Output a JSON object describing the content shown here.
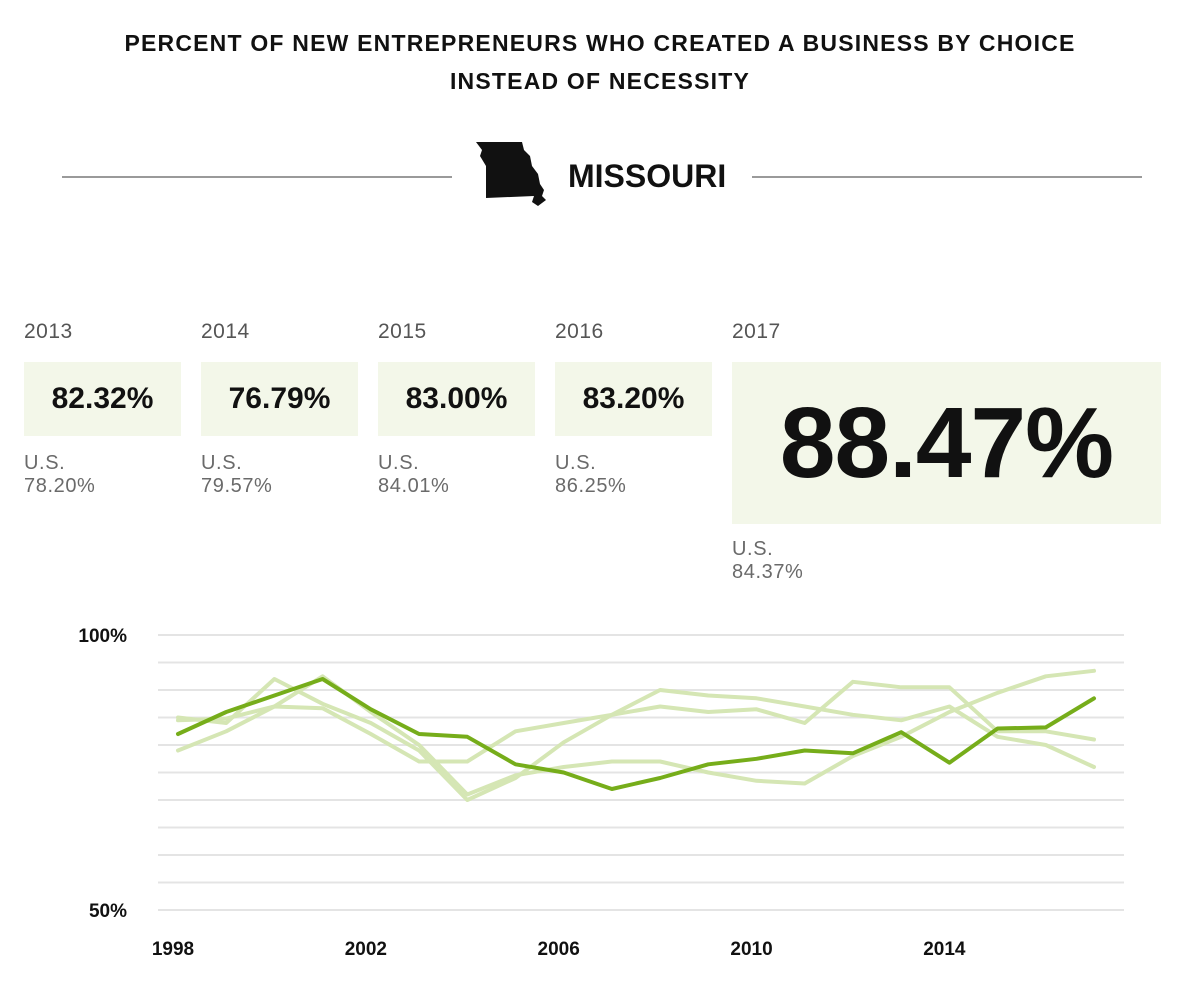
{
  "header": {
    "title_line1": "PERCENT OF NEW ENTREPRENEURS WHO CREATED A BUSINESS BY CHOICE",
    "title_line2": "INSTEAD OF NECESSITY",
    "state": "MISSOURI",
    "state_icon": "missouri-map-icon"
  },
  "cards": [
    {
      "year": "2013",
      "value": "82.32%",
      "us": "U.S. 78.20%"
    },
    {
      "year": "2014",
      "value": "76.79%",
      "us": "U.S. 79.57%"
    },
    {
      "year": "2015",
      "value": "83.00%",
      "us": "U.S. 84.01%"
    },
    {
      "year": "2016",
      "value": "83.20%",
      "us": "U.S. 86.25%"
    },
    {
      "year": "2017",
      "value": "88.47%",
      "us": "U.S. 84.37%"
    }
  ],
  "colors": {
    "highlight": "#76ad1a",
    "muted": "#d5e6b4",
    "grid": "#e4e4e4",
    "box_bg": "#f3f7e9"
  },
  "chart_data": {
    "type": "line",
    "ylim": [
      50,
      100
    ],
    "y_tick_labels": [
      {
        "value": 100,
        "label": "100%"
      },
      {
        "value": 50,
        "label": "50%"
      }
    ],
    "gridlines": [
      100,
      95,
      90,
      85,
      80,
      75,
      70,
      65,
      60,
      55,
      50
    ],
    "x_ticks": [
      1998,
      2002,
      2006,
      2010,
      2014
    ],
    "x": [
      1998,
      1999,
      2000,
      2001,
      2002,
      2003,
      2004,
      2005,
      2006,
      2007,
      2008,
      2009,
      2010,
      2011,
      2012,
      2013,
      2014,
      2015,
      2016,
      2017
    ],
    "series": [
      {
        "highlight": false,
        "values": [
          84.5,
          84.8,
          87.0,
          86.7,
          82.0,
          77.0,
          77.0,
          82.5,
          84.0,
          85.5,
          90.0,
          89.0,
          88.5,
          87.0,
          85.5,
          84.5,
          87.0,
          81.5,
          80.0,
          76.0
        ]
      },
      {
        "highlight": false,
        "values": [
          79.0,
          82.5,
          87.0,
          92.5,
          86.0,
          80.0,
          71.0,
          74.5,
          76.0,
          77.0,
          77.0,
          75.0,
          73.5,
          73.0,
          78.0,
          81.5,
          86.0,
          89.5,
          92.5,
          93.5
        ]
      },
      {
        "highlight": false,
        "values": [
          85.0,
          84.0,
          92.0,
          87.5,
          84.0,
          79.0,
          70.0,
          74.0,
          80.5,
          85.5,
          87.0,
          86.0,
          86.5,
          84.0,
          91.5,
          90.5,
          90.5,
          82.5,
          82.5,
          81.0
        ]
      },
      {
        "highlight": true,
        "values": [
          82.0,
          86.0,
          89.0,
          92.0,
          86.5,
          82.0,
          81.5,
          76.5,
          75.0,
          72.0,
          74.0,
          76.5,
          77.5,
          79.0,
          78.5,
          82.32,
          76.79,
          83.0,
          83.2,
          88.47
        ]
      }
    ]
  }
}
